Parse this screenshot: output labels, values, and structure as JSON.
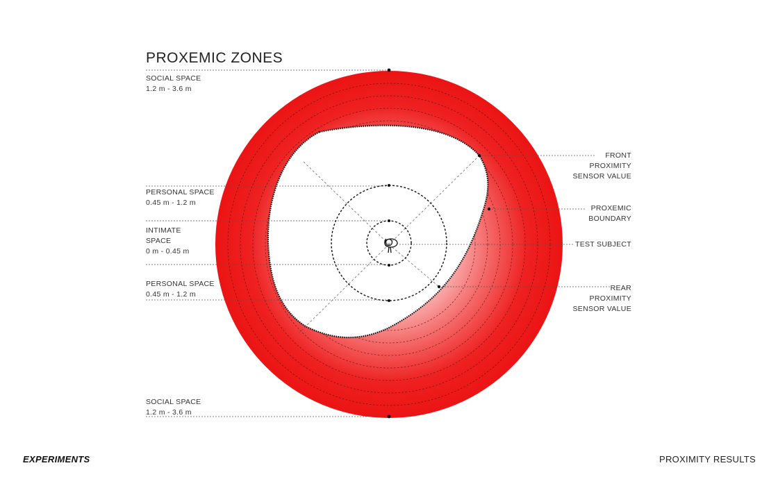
{
  "title": "PROXEMIC ZONES",
  "labels": {
    "social_top": {
      "line1": "SOCIAL SPACE",
      "line2": "1.2 m - 3.6 m"
    },
    "personal_top": {
      "line1": "PERSONAL SPACE",
      "line2": "0.45 m - 1.2 m"
    },
    "intimate": {
      "line1": "INTIMATE",
      "line2": "SPACE",
      "line3": "0 m - 0.45 m"
    },
    "personal_bottom": {
      "line1": "PERSONAL SPACE",
      "line2": "0.45 m - 1.2 m"
    },
    "social_bottom": {
      "line1": "SOCIAL SPACE",
      "line2": "1.2 m - 3.6 m"
    },
    "front_sensor": {
      "line1": "FRONT",
      "line2": "PROXIMITY",
      "line3": "SENSOR VALUE"
    },
    "proxemic_boundary": {
      "line1": "PROXEMIC",
      "line2": "BOUNDARY"
    },
    "test_subject": {
      "line1": "TEST SUBJECT"
    },
    "rear_sensor": {
      "line1": "REAR",
      "line2": "PROXIMITY",
      "line3": "SENSOR VALUE"
    }
  },
  "footer": {
    "left": "EXPERIMENTS",
    "right": "PROXIMITY RESULTS"
  },
  "colors": {
    "zone_fill": "#ee1c1c",
    "zone_fill_light": "#ffffff",
    "lines": "#222222"
  }
}
